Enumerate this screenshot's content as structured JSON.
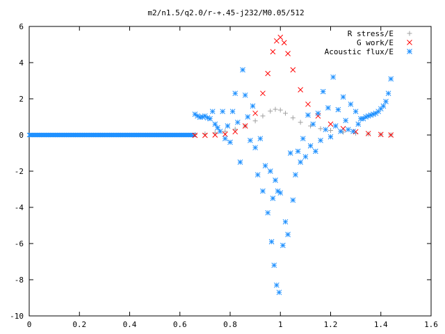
{
  "chart_data": {
    "type": "scatter",
    "title": "m2/n1.5/q2.0/r-+.45-j232/M0.05/512",
    "xlabel": "",
    "ylabel": "",
    "xlim": [
      0,
      1.6
    ],
    "ylim": [
      -10,
      6
    ],
    "xticks": [
      "0",
      "0.2",
      "0.4",
      "0.6",
      "0.8",
      "1",
      "1.2",
      "1.4",
      "1.6"
    ],
    "yticks": [
      "-10",
      "-8",
      "-6",
      "-4",
      "-2",
      "0",
      "2",
      "4",
      "6"
    ],
    "legend_position": "top-right",
    "grid": false,
    "series": [
      {
        "name": "R stress/E",
        "marker": "plus",
        "color": "#a0a0a0",
        "points": [
          [
            0.66,
            0.02
          ],
          [
            0.7,
            0.06
          ],
          [
            0.74,
            0.12
          ],
          [
            0.78,
            0.2
          ],
          [
            0.82,
            0.32
          ],
          [
            0.86,
            0.5
          ],
          [
            0.9,
            0.78
          ],
          [
            0.93,
            1.05
          ],
          [
            0.96,
            1.32
          ],
          [
            0.98,
            1.42
          ],
          [
            1.0,
            1.38
          ],
          [
            1.02,
            1.2
          ],
          [
            1.05,
            0.95
          ],
          [
            1.08,
            0.7
          ],
          [
            1.12,
            0.5
          ],
          [
            1.16,
            0.35
          ],
          [
            1.2,
            0.25
          ],
          [
            1.25,
            0.16
          ],
          [
            1.3,
            0.1
          ],
          [
            1.35,
            0.06
          ],
          [
            1.4,
            0.03
          ],
          [
            1.44,
            0.01
          ]
        ]
      },
      {
        "name": "G work/E",
        "marker": "cross",
        "color": "#ff0000",
        "points": [
          [
            0.66,
            -0.02
          ],
          [
            0.7,
            -0.02
          ],
          [
            0.74,
            0.0
          ],
          [
            0.78,
            0.04
          ],
          [
            0.82,
            0.18
          ],
          [
            0.86,
            0.5
          ],
          [
            0.9,
            1.2
          ],
          [
            0.93,
            2.3
          ],
          [
            0.95,
            3.4
          ],
          [
            0.97,
            4.6
          ],
          [
            0.985,
            5.2
          ],
          [
            1.0,
            5.4
          ],
          [
            1.015,
            5.1
          ],
          [
            1.03,
            4.5
          ],
          [
            1.05,
            3.6
          ],
          [
            1.08,
            2.5
          ],
          [
            1.11,
            1.7
          ],
          [
            1.15,
            1.05
          ],
          [
            1.2,
            0.6
          ],
          [
            1.25,
            0.35
          ],
          [
            1.3,
            0.18
          ],
          [
            1.35,
            0.08
          ],
          [
            1.4,
            0.03
          ],
          [
            1.44,
            0.0
          ]
        ]
      },
      {
        "name": "Acoustic flux/E",
        "marker": "star",
        "color": "#1e90ff",
        "points": [
          [
            0.66,
            1.15
          ],
          [
            0.67,
            1.05
          ],
          [
            0.68,
            0.98
          ],
          [
            0.69,
            1.0
          ],
          [
            0.7,
            1.05
          ],
          [
            0.71,
            0.95
          ],
          [
            0.72,
            0.9
          ],
          [
            0.73,
            1.3
          ],
          [
            0.74,
            0.6
          ],
          [
            0.75,
            0.4
          ],
          [
            0.76,
            0.2
          ],
          [
            0.77,
            1.3
          ],
          [
            0.78,
            -0.2
          ],
          [
            0.79,
            0.5
          ],
          [
            0.8,
            -0.4
          ],
          [
            0.81,
            1.3
          ],
          [
            0.82,
            2.3
          ],
          [
            0.83,
            0.7
          ],
          [
            0.84,
            -1.5
          ],
          [
            0.85,
            3.6
          ],
          [
            0.86,
            2.2
          ],
          [
            0.87,
            1.0
          ],
          [
            0.88,
            -0.3
          ],
          [
            0.89,
            1.6
          ],
          [
            0.9,
            -0.7
          ],
          [
            0.91,
            -2.2
          ],
          [
            0.92,
            -0.2
          ],
          [
            0.93,
            -3.1
          ],
          [
            0.94,
            -1.7
          ],
          [
            0.95,
            -4.3
          ],
          [
            0.96,
            -2.0
          ],
          [
            0.965,
            -5.9
          ],
          [
            0.97,
            -3.5
          ],
          [
            0.975,
            -7.2
          ],
          [
            0.98,
            -2.5
          ],
          [
            0.985,
            -8.3
          ],
          [
            0.99,
            -3.1
          ],
          [
            0.995,
            -8.7
          ],
          [
            1.0,
            -3.2
          ],
          [
            1.01,
            -6.1
          ],
          [
            1.02,
            -4.8
          ],
          [
            1.03,
            -5.5
          ],
          [
            1.04,
            -1.0
          ],
          [
            1.05,
            -3.6
          ],
          [
            1.06,
            -2.2
          ],
          [
            1.07,
            -0.9
          ],
          [
            1.08,
            -1.5
          ],
          [
            1.09,
            -0.2
          ],
          [
            1.1,
            -1.2
          ],
          [
            1.11,
            1.1
          ],
          [
            1.12,
            -0.6
          ],
          [
            1.13,
            0.6
          ],
          [
            1.14,
            -0.9
          ],
          [
            1.15,
            1.2
          ],
          [
            1.16,
            -0.3
          ],
          [
            1.17,
            2.4
          ],
          [
            1.18,
            0.3
          ],
          [
            1.19,
            1.5
          ],
          [
            1.2,
            -0.1
          ],
          [
            1.21,
            3.2
          ],
          [
            1.22,
            0.5
          ],
          [
            1.23,
            1.4
          ],
          [
            1.24,
            0.2
          ],
          [
            1.25,
            2.1
          ],
          [
            1.26,
            0.8
          ],
          [
            1.27,
            0.3
          ],
          [
            1.28,
            1.7
          ],
          [
            1.29,
            0.2
          ],
          [
            1.3,
            1.3
          ],
          [
            1.31,
            0.6
          ],
          [
            1.32,
            0.9
          ],
          [
            1.33,
            0.9
          ],
          [
            1.34,
            1.0
          ],
          [
            1.35,
            1.05
          ],
          [
            1.36,
            1.1
          ],
          [
            1.37,
            1.15
          ],
          [
            1.38,
            1.2
          ],
          [
            1.39,
            1.3
          ],
          [
            1.4,
            1.45
          ],
          [
            1.41,
            1.6
          ],
          [
            1.42,
            1.85
          ],
          [
            1.43,
            2.3
          ],
          [
            1.44,
            3.1
          ]
        ]
      }
    ]
  }
}
